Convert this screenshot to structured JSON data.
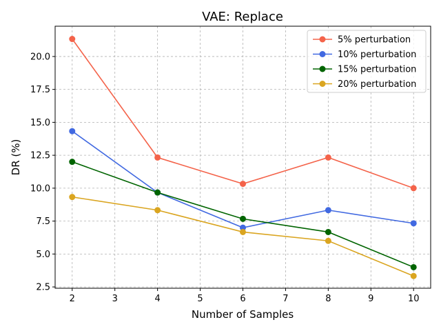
{
  "chart_data": {
    "type": "line",
    "title": "VAE: Replace",
    "xlabel": "Number of Samples",
    "ylabel": "DR (%)",
    "x": [
      2,
      4,
      6,
      8,
      10
    ],
    "xlim": [
      1.6,
      10.4
    ],
    "ylim": [
      2.4,
      22.3
    ],
    "xticks": [
      2,
      3,
      4,
      5,
      6,
      7,
      8,
      9,
      10
    ],
    "yticks": [
      2.5,
      5.0,
      7.5,
      10.0,
      12.5,
      15.0,
      17.5,
      20.0
    ],
    "ytick_labels": [
      "2.5",
      "5.0",
      "7.5",
      "10.0",
      "12.5",
      "15.0",
      "17.5",
      "20.0"
    ],
    "grid": true,
    "legend_position": "top-right",
    "series": [
      {
        "name": "5% perturbation",
        "color": "#f4634a",
        "values": [
          21.33,
          12.33,
          10.33,
          12.33,
          10.0
        ]
      },
      {
        "name": "10% perturbation",
        "color": "#4169e1",
        "values": [
          14.33,
          9.67,
          7.0,
          8.33,
          7.33
        ]
      },
      {
        "name": "15% perturbation",
        "color": "#006400",
        "values": [
          12.0,
          9.67,
          7.67,
          6.67,
          4.0
        ]
      },
      {
        "name": "20% perturbation",
        "color": "#daa520",
        "values": [
          9.33,
          8.33,
          6.67,
          6.0,
          3.33
        ]
      }
    ]
  }
}
